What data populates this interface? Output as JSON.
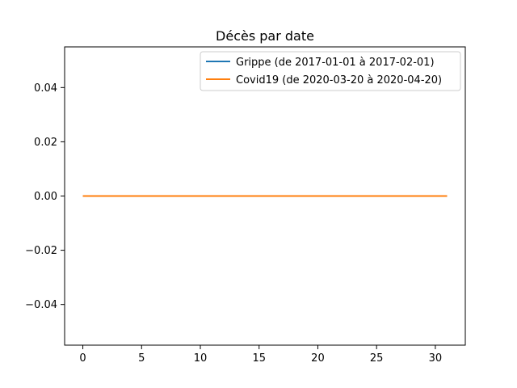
{
  "chart_data": {
    "type": "line",
    "title": "Décès par date",
    "xlabel": "",
    "ylabel": "",
    "xlim": [
      -1.55,
      32.55
    ],
    "ylim": [
      -0.055,
      0.055
    ],
    "x_ticks": [
      0,
      5,
      10,
      15,
      20,
      25,
      30
    ],
    "x_tick_labels": [
      "0",
      "5",
      "10",
      "15",
      "20",
      "25",
      "30"
    ],
    "y_ticks": [
      0.04,
      0.02,
      0.0,
      -0.02,
      -0.04
    ],
    "y_tick_labels": [
      "0.04",
      "0.02",
      "0.00",
      "−0.02",
      "−0.04"
    ],
    "grid": false,
    "legend_position": "top-right",
    "series": [
      {
        "name": "Grippe (de 2017-01-01 à 2017-02-01)",
        "color": "#1f77b4",
        "x": [
          0,
          31
        ],
        "y": [
          0,
          0
        ]
      },
      {
        "name": "Covid19 (de 2020-03-20 à 2020-04-20)",
        "color": "#ff7f0e",
        "x": [
          0,
          31
        ],
        "y": [
          0,
          0
        ]
      }
    ]
  }
}
